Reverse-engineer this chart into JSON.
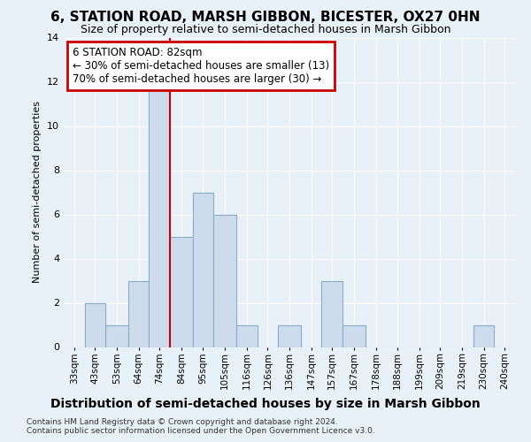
{
  "title": "6, STATION ROAD, MARSH GIBBON, BICESTER, OX27 0HN",
  "subtitle": "Size of property relative to semi-detached houses in Marsh Gibbon",
  "xlabel_bottom": "Distribution of semi-detached houses by size in Marsh Gibbon",
  "ylabel": "Number of semi-detached properties",
  "footnote1": "Contains HM Land Registry data © Crown copyright and database right 2024.",
  "footnote2": "Contains public sector information licensed under the Open Government Licence v3.0.",
  "annotation_title": "6 STATION ROAD: 82sqm",
  "annotation_line1": "← 30% of semi-detached houses are smaller (13)",
  "annotation_line2": "70% of semi-detached houses are larger (30) →",
  "bar_color": "#ccdcec",
  "bar_edge_color": "#8aaac8",
  "red_line_x": 84,
  "annotation_box_color": "#ffffff",
  "annotation_box_edge_color": "#cc0000",
  "categories": [
    "33sqm",
    "43sqm",
    "53sqm",
    "64sqm",
    "74sqm",
    "84sqm",
    "95sqm",
    "105sqm",
    "116sqm",
    "126sqm",
    "136sqm",
    "147sqm",
    "157sqm",
    "167sqm",
    "178sqm",
    "188sqm",
    "199sqm",
    "209sqm",
    "219sqm",
    "230sqm",
    "240sqm"
  ],
  "bin_edges": [
    33,
    43,
    53,
    64,
    74,
    84,
    95,
    105,
    116,
    126,
    136,
    147,
    157,
    167,
    178,
    188,
    199,
    209,
    219,
    230,
    240,
    250
  ],
  "values": [
    0,
    2,
    1,
    3,
    12,
    5,
    7,
    6,
    1,
    0,
    1,
    0,
    3,
    1,
    0,
    0,
    0,
    0,
    0,
    1,
    0
  ],
  "ylim": [
    0,
    14
  ],
  "yticks": [
    0,
    2,
    4,
    6,
    8,
    10,
    12,
    14
  ],
  "background_color": "#e8f0f8",
  "grid_color": "#ffffff",
  "title_fontsize": 11,
  "subtitle_fontsize": 9,
  "ylabel_fontsize": 8,
  "tick_fontsize": 8,
  "xtick_fontsize": 7.5,
  "annotation_fontsize": 8.5,
  "xlabel_bottom_fontsize": 10,
  "footnote_fontsize": 6.5
}
